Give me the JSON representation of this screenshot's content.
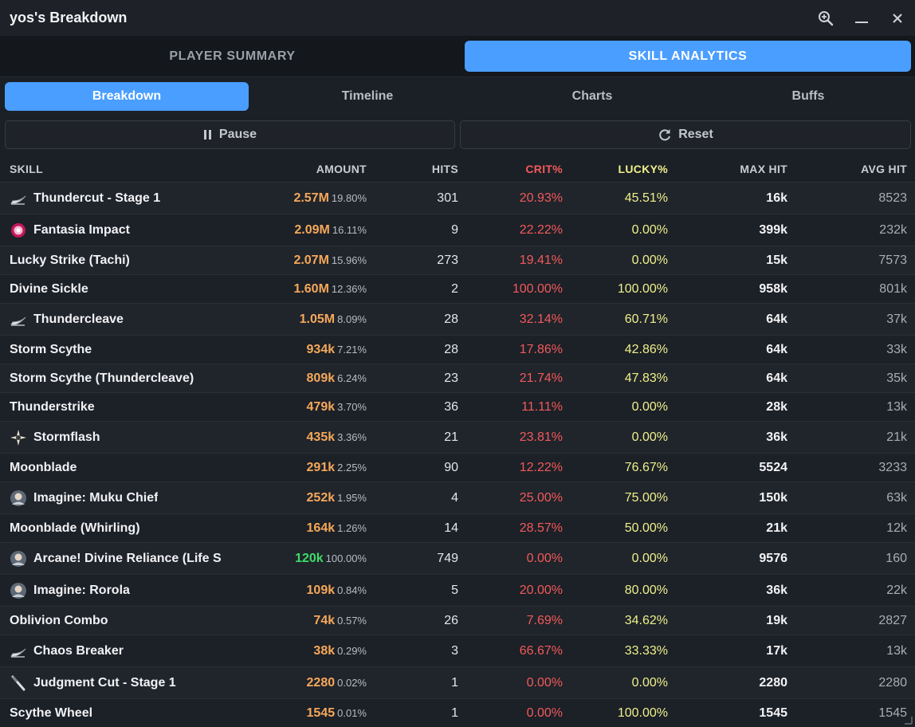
{
  "window": {
    "title": "yos's Breakdown"
  },
  "main_tabs": [
    {
      "label": "PLAYER SUMMARY",
      "active": false
    },
    {
      "label": "SKILL ANALYTICS",
      "active": true
    }
  ],
  "sub_tabs": [
    {
      "label": "Breakdown",
      "active": true
    },
    {
      "label": "Timeline",
      "active": false
    },
    {
      "label": "Charts",
      "active": false
    },
    {
      "label": "Buffs",
      "active": false
    }
  ],
  "actions": {
    "pause_label": "Pause",
    "reset_label": "Reset"
  },
  "columns": {
    "skill": "SKILL",
    "amount": "AMOUNT",
    "hits": "HITS",
    "crit": "CRIT%",
    "lucky": "LUCKY%",
    "max_hit": "MAX HIT",
    "avg_hit": "AVG HIT"
  },
  "colors": {
    "accent": "#4a9eff",
    "amount": "#f5a85a",
    "amount_heal": "#3ddc6a",
    "crit": "#f15a5a",
    "lucky": "#eef08a"
  },
  "rows": [
    {
      "skill": "Thundercut - Stage 1",
      "icon": "scythe-icon",
      "amount": "2.57M",
      "pct": "19.80%",
      "hits": "301",
      "crit": "20.93%",
      "lucky": "45.51%",
      "max_hit": "16k",
      "avg_hit": "8523"
    },
    {
      "skill": "Fantasia Impact",
      "icon": "pink-burst-icon",
      "amount": "2.09M",
      "pct": "16.11%",
      "hits": "9",
      "crit": "22.22%",
      "lucky": "0.00%",
      "max_hit": "399k",
      "avg_hit": "232k"
    },
    {
      "skill": "Lucky Strike (Tachi)",
      "icon": "",
      "amount": "2.07M",
      "pct": "15.96%",
      "hits": "273",
      "crit": "19.41%",
      "lucky": "0.00%",
      "max_hit": "15k",
      "avg_hit": "7573"
    },
    {
      "skill": "Divine Sickle",
      "icon": "",
      "amount": "1.60M",
      "pct": "12.36%",
      "hits": "2",
      "crit": "100.00%",
      "lucky": "100.00%",
      "max_hit": "958k",
      "avg_hit": "801k"
    },
    {
      "skill": "Thundercleave",
      "icon": "scythe-icon",
      "amount": "1.05M",
      "pct": "8.09%",
      "hits": "28",
      "crit": "32.14%",
      "lucky": "60.71%",
      "max_hit": "64k",
      "avg_hit": "37k"
    },
    {
      "skill": "Storm Scythe",
      "icon": "",
      "amount": "934k",
      "pct": "7.21%",
      "hits": "28",
      "crit": "17.86%",
      "lucky": "42.86%",
      "max_hit": "64k",
      "avg_hit": "33k"
    },
    {
      "skill": "Storm Scythe (Thundercleave)",
      "icon": "",
      "amount": "809k",
      "pct": "6.24%",
      "hits": "23",
      "crit": "21.74%",
      "lucky": "47.83%",
      "max_hit": "64k",
      "avg_hit": "35k"
    },
    {
      "skill": "Thunderstrike",
      "icon": "",
      "amount": "479k",
      "pct": "3.70%",
      "hits": "36",
      "crit": "11.11%",
      "lucky": "0.00%",
      "max_hit": "28k",
      "avg_hit": "13k"
    },
    {
      "skill": "Stormflash",
      "icon": "spark-icon",
      "amount": "435k",
      "pct": "3.36%",
      "hits": "21",
      "crit": "23.81%",
      "lucky": "0.00%",
      "max_hit": "36k",
      "avg_hit": "21k"
    },
    {
      "skill": "Moonblade",
      "icon": "",
      "amount": "291k",
      "pct": "2.25%",
      "hits": "90",
      "crit": "12.22%",
      "lucky": "76.67%",
      "max_hit": "5524",
      "avg_hit": "3233"
    },
    {
      "skill": "Imagine: Muku Chief",
      "icon": "portrait-icon",
      "amount": "252k",
      "pct": "1.95%",
      "hits": "4",
      "crit": "25.00%",
      "lucky": "75.00%",
      "max_hit": "150k",
      "avg_hit": "63k"
    },
    {
      "skill": "Moonblade (Whirling)",
      "icon": "",
      "amount": "164k",
      "pct": "1.26%",
      "hits": "14",
      "crit": "28.57%",
      "lucky": "50.00%",
      "max_hit": "21k",
      "avg_hit": "12k"
    },
    {
      "skill": "Arcane! Divine Reliance (Life S",
      "icon": "portrait-icon",
      "amount": "120k",
      "pct": "100.00%",
      "hits": "749",
      "crit": "0.00%",
      "lucky": "0.00%",
      "max_hit": "9576",
      "avg_hit": "160",
      "heal": true
    },
    {
      "skill": "Imagine: Rorola",
      "icon": "portrait-icon",
      "amount": "109k",
      "pct": "0.84%",
      "hits": "5",
      "crit": "20.00%",
      "lucky": "80.00%",
      "max_hit": "36k",
      "avg_hit": "22k"
    },
    {
      "skill": "Oblivion Combo",
      "icon": "",
      "amount": "74k",
      "pct": "0.57%",
      "hits": "26",
      "crit": "7.69%",
      "lucky": "34.62%",
      "max_hit": "19k",
      "avg_hit": "2827"
    },
    {
      "skill": "Chaos Breaker",
      "icon": "scythe-icon",
      "amount": "38k",
      "pct": "0.29%",
      "hits": "3",
      "crit": "66.67%",
      "lucky": "33.33%",
      "max_hit": "17k",
      "avg_hit": "13k"
    },
    {
      "skill": "Judgment Cut - Stage 1",
      "icon": "blade-icon",
      "amount": "2280",
      "pct": "0.02%",
      "hits": "1",
      "crit": "0.00%",
      "lucky": "0.00%",
      "max_hit": "2280",
      "avg_hit": "2280"
    },
    {
      "skill": "Scythe Wheel",
      "icon": "",
      "amount": "1545",
      "pct": "0.01%",
      "hits": "1",
      "crit": "0.00%",
      "lucky": "100.00%",
      "max_hit": "1545",
      "avg_hit": "1545"
    }
  ]
}
